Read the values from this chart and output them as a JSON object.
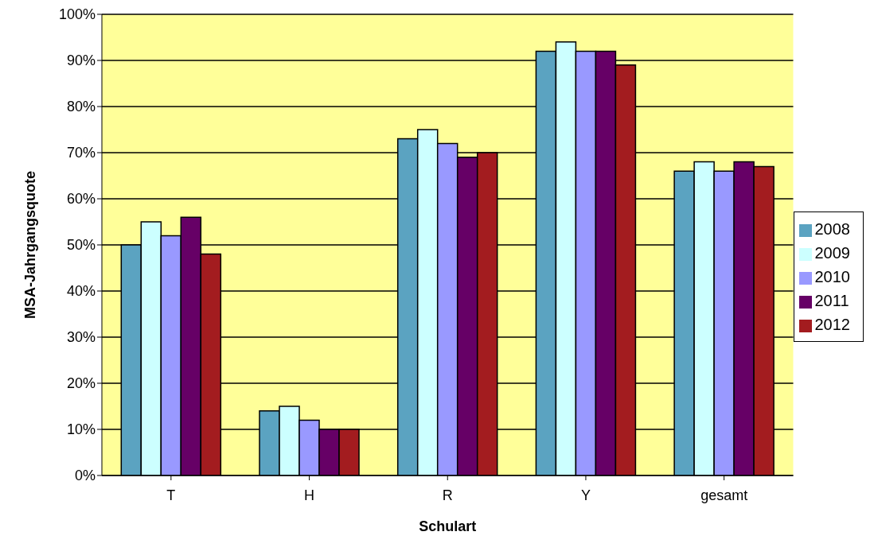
{
  "chart_data": {
    "type": "bar",
    "xlabel": "Schulart",
    "ylabel": "MSA-Jahrgangsquote",
    "categories": [
      "T",
      "H",
      "R",
      "Y",
      "gesamt"
    ],
    "series": [
      {
        "name": "2008",
        "color": "#5ba3c1",
        "values": [
          50,
          14,
          73,
          92,
          66
        ]
      },
      {
        "name": "2009",
        "color": "#ccffff",
        "values": [
          55,
          15,
          75,
          94,
          68
        ]
      },
      {
        "name": "2010",
        "color": "#9999ff",
        "values": [
          52,
          12,
          72,
          92,
          66
        ]
      },
      {
        "name": "2011",
        "color": "#660066",
        "values": [
          56,
          10,
          69,
          92,
          68
        ]
      },
      {
        "name": "2012",
        "color": "#a31c1f",
        "values": [
          48,
          10,
          70,
          89,
          67
        ]
      }
    ],
    "ylim": [
      0,
      100
    ],
    "yticks": [
      {
        "value": 0,
        "label": "0%"
      },
      {
        "value": 10,
        "label": "10%"
      },
      {
        "value": 20,
        "label": "20%"
      },
      {
        "value": 30,
        "label": "30%"
      },
      {
        "value": 40,
        "label": "40%"
      },
      {
        "value": 50,
        "label": "50%"
      },
      {
        "value": 60,
        "label": "60%"
      },
      {
        "value": 70,
        "label": "70%"
      },
      {
        "value": 80,
        "label": "80%"
      },
      {
        "value": 90,
        "label": "90%"
      },
      {
        "value": 100,
        "label": "100%"
      }
    ],
    "grid": "y",
    "legend": "right"
  }
}
